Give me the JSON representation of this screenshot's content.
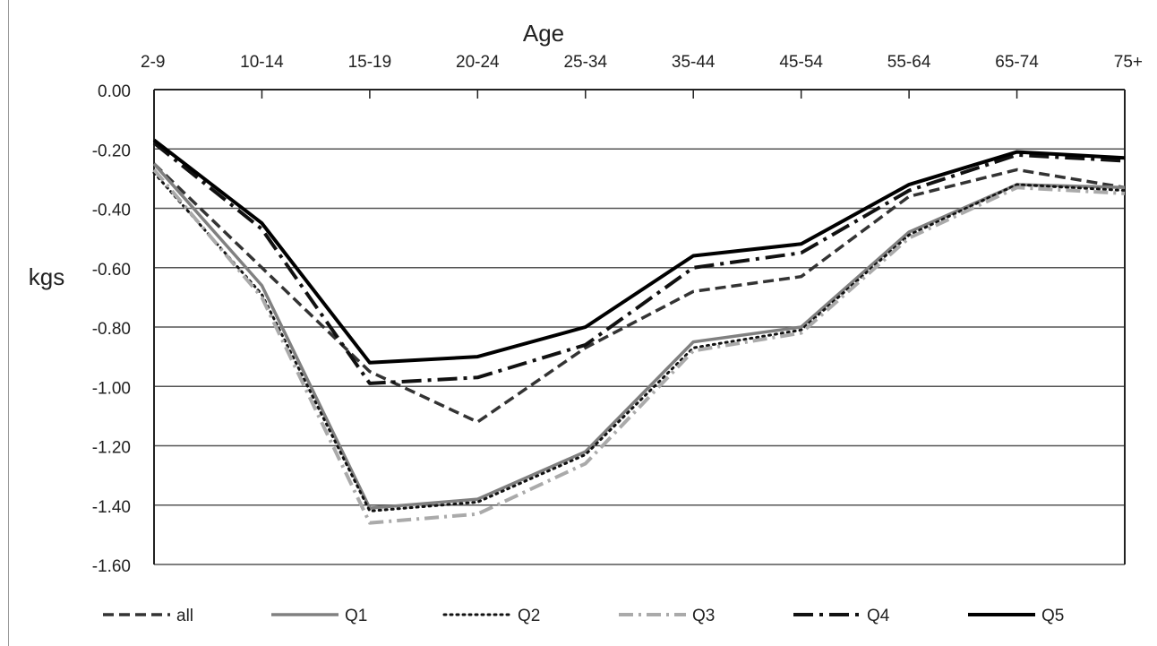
{
  "chart_data": {
    "type": "line",
    "xlabel": "Age",
    "ylabel": "kgs",
    "x_axis_position": "top",
    "categories": [
      "2-9",
      "10-14",
      "15-19",
      "20-24",
      "25-34",
      "35-44",
      "45-54",
      "55-64",
      "65-74",
      "75+"
    ],
    "ylim": [
      -1.6,
      0.0
    ],
    "y_ticks": [
      0.0,
      -0.2,
      -0.4,
      -0.6,
      -0.8,
      -1.0,
      -1.2,
      -1.4,
      -1.6
    ],
    "y_tick_labels": [
      "0.00",
      "-0.20",
      "-0.40",
      "-0.60",
      "-0.80",
      "-1.00",
      "-1.20",
      "-1.40",
      "-1.60"
    ],
    "grid": "horizontal",
    "legend_position": "bottom",
    "series": [
      {
        "name": "all",
        "color": "#333333",
        "style": "dashed",
        "values": [
          -0.25,
          -0.6,
          -0.95,
          -1.12,
          -0.87,
          -0.68,
          -0.63,
          -0.36,
          -0.27,
          -0.33
        ]
      },
      {
        "name": "Q1",
        "color": "#808080",
        "style": "solid",
        "values": [
          -0.25,
          -0.66,
          -1.41,
          -1.38,
          -1.22,
          -0.85,
          -0.8,
          -0.48,
          -0.32,
          -0.33
        ]
      },
      {
        "name": "Q2",
        "color": "#111111",
        "style": "dotted",
        "values": [
          -0.28,
          -0.69,
          -1.42,
          -1.39,
          -1.23,
          -0.87,
          -0.81,
          -0.49,
          -0.32,
          -0.34
        ]
      },
      {
        "name": "Q3",
        "color": "#aaaaaa",
        "style": "dash-dot",
        "values": [
          -0.27,
          -0.7,
          -1.46,
          -1.43,
          -1.26,
          -0.88,
          -0.82,
          -0.5,
          -0.33,
          -0.35
        ]
      },
      {
        "name": "Q4",
        "color": "#111111",
        "style": "long-dash-dot",
        "values": [
          -0.18,
          -0.47,
          -0.99,
          -0.97,
          -0.86,
          -0.6,
          -0.55,
          -0.34,
          -0.22,
          -0.24
        ]
      },
      {
        "name": "Q5",
        "color": "#000000",
        "style": "solid-thick",
        "values": [
          -0.17,
          -0.45,
          -0.92,
          -0.9,
          -0.8,
          -0.56,
          -0.52,
          -0.32,
          -0.21,
          -0.23
        ]
      }
    ]
  }
}
